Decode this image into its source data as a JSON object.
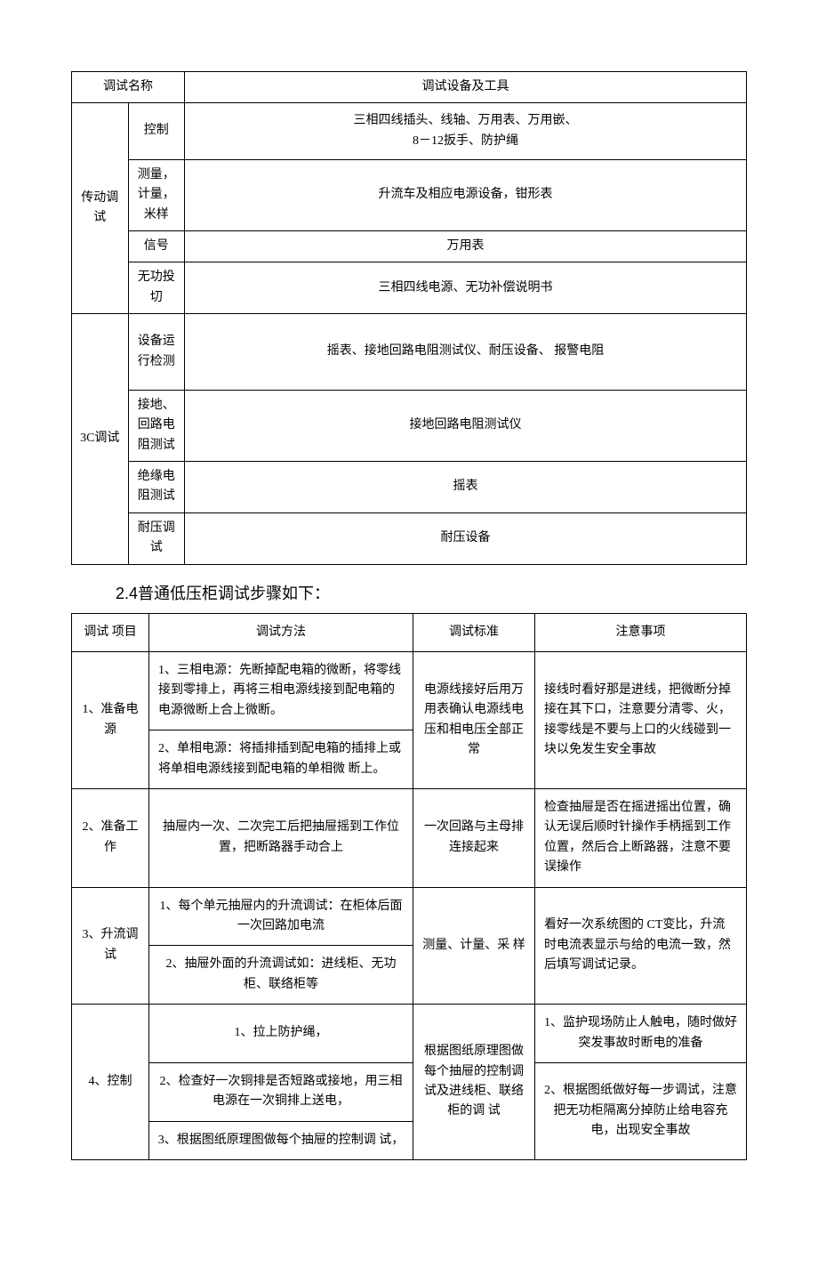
{
  "colors": {
    "text": "#000000",
    "border": "#000000",
    "background": "#ffffff"
  },
  "table1": {
    "headers": {
      "name": "调试名称",
      "tools": "调试设备及工具"
    },
    "groups": [
      {
        "group": "传动调试",
        "rows": [
          {
            "sub": "控制",
            "tools": "三相四线插头、线轴、万用表、万用嵌、\n8－12扳手、防护绳"
          },
          {
            "sub": "测量，计量，米样",
            "tools": "升流车及相应电源设备，钳形表"
          },
          {
            "sub": "信号",
            "tools": "万用表"
          },
          {
            "sub": "无功投切",
            "tools": "三相四线电源、无功补偿说明书"
          }
        ]
      },
      {
        "group": "3C调试",
        "rows": [
          {
            "sub": "设备运行检测",
            "tools": "摇表、接地回路电阻测试仪、耐压设备、 报警电阻"
          },
          {
            "sub": "接地、回路电阻测试",
            "tools": "接地回路电阻测试仪"
          },
          {
            "sub": "绝缘电阻测试",
            "tools": "摇表"
          },
          {
            "sub": "耐压调试",
            "tools": "耐压设备"
          }
        ]
      }
    ]
  },
  "section_title": "2.4普通低压柜调试步骤如下：",
  "table2": {
    "headers": {
      "item": "调试 项目",
      "method": "调试方法",
      "standard": "调试标准",
      "note": "注意事项"
    },
    "rows": [
      {
        "item": "1、准备电源",
        "methods": [
          "1、三相电源：先断掉配电箱的微断，将零线接到零排上，再将三相电源线接到配电箱的电源微断上合上微断。",
          "2、单相电源：将插排插到配电箱的插排上或将单相电源线接到配电箱的单相微 断上。"
        ],
        "standard": "电源线接好后用万用表确认电源线电压和相电压全部正常",
        "note": "接线时看好那是进线，把微断分掉接在其下口，注意要分清零、火，接零线是不要与上口的火线碰到一块以免发生安全事故"
      },
      {
        "item": "2、准备工作",
        "methods": [
          "抽屉内一次、二次完工后把抽屉摇到工作位置，把断路器手动合上"
        ],
        "standard": "一次回路与主母排连接起来",
        "note": "检查抽屉是否在摇进摇出位置，确认无误后顺时针操作手柄摇到工作位置，然后合上断路器，注意不要误操作"
      },
      {
        "item": "3、升流调试",
        "methods": [
          "1、每个单元抽屉内的升流调试：在柜体后面一次回路加电流",
          "2、抽屉外面的升流调试如：进线柜、无功柜、联络柜等"
        ],
        "standard": "测量、计量、采 样",
        "note": "看好一次系统图的 CT变比，升流时电流表显示与给的电流一致，然后填写调试记录。"
      },
      {
        "item": "4、控制",
        "methods": [
          "1、拉上防护绳，",
          "2、检查好一次铜排是否短路或接地，用三相电源在一次铜排上送电，",
          "3、根据图纸原理图做每个抽屉的控制调 试，"
        ],
        "standard": "根据图纸原理图做每个抽屉的控制调试及进线柜、联络柜的调 试",
        "notes": [
          "1、监护现场防止人触电，随时做好突发事故时断电的准备",
          "2、根据图纸做好每一步调试，注意把无功柜隔离分掉防止给电容充电，出现安全事故"
        ]
      }
    ]
  }
}
